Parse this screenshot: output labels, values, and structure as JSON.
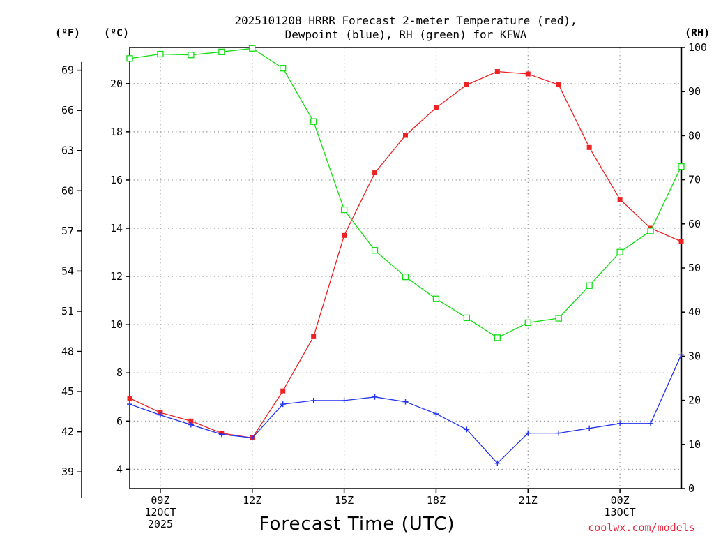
{
  "chart_data": {
    "type": "line",
    "title_line1": "2025101208 HRRR Forecast 2-meter Temperature (red),",
    "title_line2": "Dewpoint (blue), RH (green) for KFWA",
    "xlabel": "Forecast Time (UTC)",
    "credit": "coolwx.com/models",
    "units": {
      "fahrenheit": "(ºF)",
      "celsius": "(ºC)",
      "rh": "(RH)"
    },
    "x_hours": [
      8,
      9,
      10,
      11,
      12,
      13,
      14,
      15,
      16,
      17,
      18,
      19,
      20,
      21,
      22,
      23,
      24,
      25,
      26
    ],
    "x_range": [
      8,
      26
    ],
    "x_ticks": [
      {
        "hour": 9,
        "lines": [
          "09Z",
          "12OCT",
          "2025"
        ]
      },
      {
        "hour": 12,
        "lines": [
          "12Z"
        ]
      },
      {
        "hour": 15,
        "lines": [
          "15Z"
        ]
      },
      {
        "hour": 18,
        "lines": [
          "18Z"
        ]
      },
      {
        "hour": 21,
        "lines": [
          "21Z"
        ]
      },
      {
        "hour": 24,
        "lines": [
          "00Z",
          "13OCT"
        ]
      }
    ],
    "celsius_axis": {
      "range": [
        3.2,
        21.5
      ],
      "ticks": [
        4,
        6,
        8,
        10,
        12,
        14,
        16,
        18,
        20
      ]
    },
    "fahrenheit_ticks": [
      39,
      42,
      45,
      48,
      51,
      54,
      57,
      60,
      63,
      66,
      69
    ],
    "rh_axis": {
      "range": [
        0,
        100
      ],
      "ticks": [
        0,
        10,
        20,
        30,
        40,
        50,
        60,
        70,
        80,
        90,
        100
      ]
    },
    "colors": {
      "temperature": "#ee2222",
      "dewpoint": "#2233ee",
      "rh": "#11dd11",
      "grid": "#999999"
    },
    "series": [
      {
        "name": "Temperature",
        "axis": "celsius",
        "marker": "filled-square",
        "values": [
          6.95,
          6.35,
          6.0,
          5.5,
          5.3,
          7.25,
          9.5,
          13.7,
          16.3,
          17.85,
          19.0,
          19.95,
          20.5,
          20.4,
          19.95,
          17.35,
          15.2,
          14.0,
          13.45
        ]
      },
      {
        "name": "Dewpoint",
        "axis": "celsius",
        "marker": "plus",
        "values": [
          6.7,
          6.25,
          5.85,
          5.45,
          5.3,
          6.7,
          6.85,
          6.85,
          7.0,
          6.8,
          6.3,
          5.65,
          4.25,
          5.5,
          5.5,
          5.7,
          5.9,
          5.9,
          8.75
        ]
      },
      {
        "name": "RH",
        "axis": "rh",
        "marker": "open-square",
        "values": [
          97.5,
          98.5,
          98.3,
          99.0,
          99.8,
          95.3,
          83.2,
          63.2,
          54.0,
          48.0,
          43.0,
          38.7,
          34.2,
          37.6,
          38.6,
          46.0,
          53.6,
          58.4,
          73.0
        ]
      }
    ]
  }
}
